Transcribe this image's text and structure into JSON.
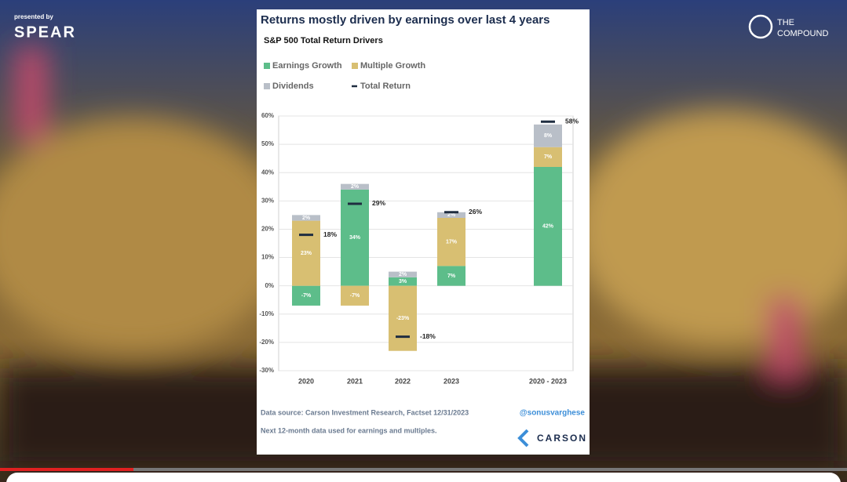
{
  "overlay": {
    "presented_by": "presented by",
    "brand": "SPEAR",
    "channel_line1": "THE",
    "channel_line2": "COMPOUND"
  },
  "chart_data": {
    "type": "stacked_bar",
    "title": "Returns mostly driven by earnings over last 4 years",
    "subtitle": "S&P 500 Total Return Drivers",
    "categories": [
      "2020",
      "2021",
      "2022",
      "2023",
      "2020 - 2023"
    ],
    "series": [
      {
        "name": "Earnings Growth",
        "color": "#5dbd8a",
        "values": [
          -7,
          34,
          3,
          7,
          42
        ],
        "value_labels": [
          "-7%",
          "34%",
          "3%",
          "7%",
          "42%"
        ]
      },
      {
        "name": "Multiple Growth",
        "color": "#d8bf72",
        "values": [
          23,
          -7,
          -23,
          17,
          7
        ],
        "value_labels": [
          "23%",
          "-7%",
          "-23%",
          "17%",
          "7%"
        ]
      },
      {
        "name": "Dividends",
        "color": "#b9bfc8",
        "values": [
          2,
          2,
          2,
          2,
          8
        ],
        "value_labels": [
          "2%",
          "2%",
          "2%",
          "2%",
          "8%"
        ]
      }
    ],
    "total": {
      "name": "Total Return",
      "color": "#1f2d40",
      "values": [
        18,
        29,
        -18,
        26,
        58
      ],
      "value_labels": [
        "18%",
        "29%",
        "-18%",
        "26%",
        "58%"
      ]
    },
    "ylim": [
      -30,
      60
    ],
    "yticks": [
      {
        "value": -30,
        "label": "-30%"
      },
      {
        "value": -20,
        "label": "-20%"
      },
      {
        "value": -10,
        "label": "-10%"
      },
      {
        "value": 0,
        "label": "0%"
      },
      {
        "value": 10,
        "label": "10%"
      },
      {
        "value": 20,
        "label": "20%"
      },
      {
        "value": 30,
        "label": "30%"
      },
      {
        "value": 40,
        "label": "40%"
      },
      {
        "value": 50,
        "label": "50%"
      },
      {
        "value": 60,
        "label": "60%"
      }
    ],
    "grid": true,
    "source": "Data source: Carson Investment Research, Factset   12/31/2023",
    "handle": "@sonusvarghese",
    "note": "Next 12-month data used for earnings and multiples.",
    "logo": "CARSON"
  }
}
